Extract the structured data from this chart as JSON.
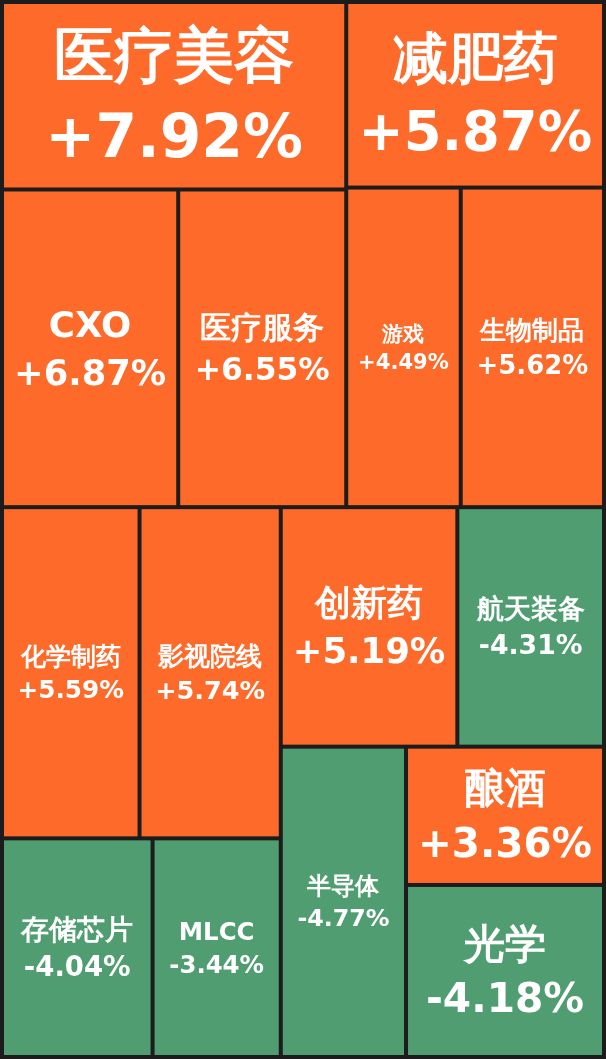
{
  "chart_data": {
    "type": "other",
    "categories": [
      "医疗美容",
      "CXO",
      "医疗服务",
      "减肥药",
      "游戏",
      "生物制品",
      "化学制药",
      "影视院线",
      "存储芯片",
      "MLCC",
      "创新药",
      "航天装备",
      "半导体",
      "酿酒",
      "光学"
    ],
    "values": [
      7.92,
      6.87,
      6.55,
      5.87,
      4.49,
      5.62,
      5.59,
      5.74,
      -4.04,
      -3.44,
      5.19,
      -4.31,
      -4.77,
      3.36,
      -4.18
    ],
    "value_labels": [
      "+7.92%",
      "+6.87%",
      "+6.55%",
      "+5.87%",
      "+4.49%",
      "+5.62%",
      "+5.59%",
      "+5.74%",
      "-4.04%",
      "-3.44%",
      "+5.19%",
      "-4.31%",
      "-4.77%",
      "+3.36%",
      "-4.18%"
    ],
    "colors": [
      "#fe6a29",
      "#fe6a29",
      "#fe6a29",
      "#fe6a29",
      "#fe6a29",
      "#fe6a29",
      "#fe6a29",
      "#fe6a29",
      "#4f9d70",
      "#4f9d70",
      "#fe6a29",
      "#4f9d70",
      "#4f9d70",
      "#fe6a29",
      "#4f9d70"
    ]
  }
}
